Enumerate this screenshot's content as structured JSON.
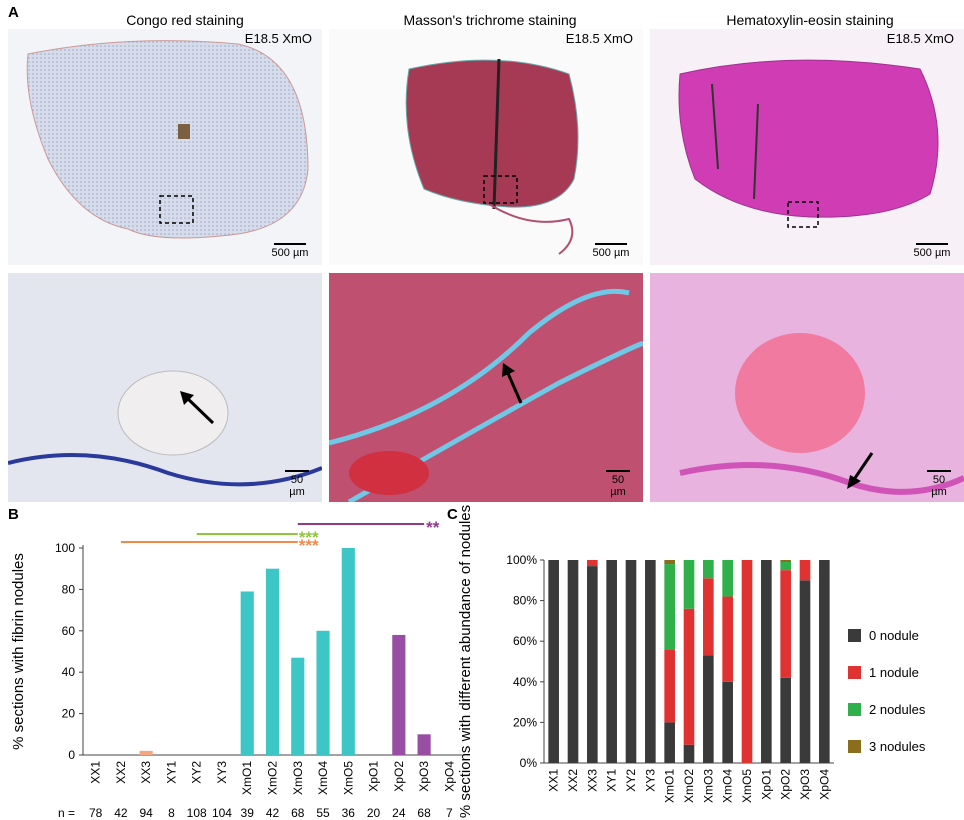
{
  "panel_A": {
    "letter": "A",
    "titles": [
      "Congo red staining",
      "Masson's trichrome staining",
      "Hematoxylin-eosin staining"
    ],
    "sample_tag": "E18.5 XmO",
    "scale_top": "500 µm",
    "scale_bottom": "50 µm"
  },
  "chart_data": [
    {
      "panel": "B",
      "type": "bar",
      "ylabel": "% sections with fibrin nodules",
      "ylim": [
        0,
        100
      ],
      "yticks": [
        0,
        20,
        40,
        60,
        80,
        100
      ],
      "categories": [
        "XX1",
        "XX2",
        "XX3",
        "XY1",
        "XY2",
        "XY3",
        "XmO1",
        "XmO2",
        "XmO3",
        "XmO4",
        "XmO5",
        "XpO1",
        "XpO2",
        "XpO3",
        "XpO4"
      ],
      "values": [
        0,
        0,
        2,
        0,
        0,
        0,
        79,
        90,
        47,
        60,
        100,
        0,
        58,
        10,
        0
      ],
      "n_prefix": "n =",
      "n_values": [
        "78",
        "42",
        "94",
        "8",
        "108",
        "104",
        "39",
        "42",
        "68",
        "55",
        "36",
        "20",
        "24",
        "68",
        "7"
      ],
      "groups": {
        "XX": {
          "range": [
            0,
            2
          ],
          "color": "#f4a582"
        },
        "XY": {
          "range": [
            3,
            5
          ],
          "color": "#f4a582"
        },
        "XmO": {
          "range": [
            6,
            10
          ],
          "color": "#3cc7c6"
        },
        "XpO": {
          "range": [
            11,
            14
          ],
          "color": "#984ea3"
        }
      },
      "significance": [
        {
          "from": "XX2",
          "to": "XmO3",
          "label": "***",
          "color": "#f4874b"
        },
        {
          "from": "XY2",
          "to": "XmO3",
          "label": "***",
          "color": "#8ec63f"
        },
        {
          "from": "XmO3",
          "to": "XpO3",
          "label": "**",
          "color": "#8e3a8e"
        }
      ]
    },
    {
      "panel": "C",
      "type": "bar",
      "stacked": true,
      "ylabel": "% sections with different abundance of nodules",
      "ylim": [
        0,
        100
      ],
      "ytick_labels": [
        "0%",
        "20%",
        "40%",
        "60%",
        "80%",
        "100%"
      ],
      "categories": [
        "XX1",
        "XX2",
        "XX3",
        "XY1",
        "XY2",
        "XY3",
        "XmO1",
        "XmO2",
        "XmO3",
        "XmO4",
        "XmO5",
        "XpO1",
        "XpO2",
        "XpO3",
        "XpO4"
      ],
      "series": [
        {
          "name": "0 nodule",
          "color": "#3a3a3a",
          "values": [
            100,
            100,
            97,
            100,
            100,
            100,
            20,
            9,
            53,
            40,
            0,
            100,
            42,
            90,
            100
          ]
        },
        {
          "name": "1 nodule",
          "color": "#e13232",
          "values": [
            0,
            0,
            3,
            0,
            0,
            0,
            36,
            67,
            38,
            42,
            100,
            0,
            53,
            10,
            0
          ]
        },
        {
          "name": "2 nodules",
          "color": "#2fb04a",
          "values": [
            0,
            0,
            0,
            0,
            0,
            0,
            42,
            24,
            9,
            18,
            0,
            0,
            4,
            0,
            0
          ]
        },
        {
          "name": "3 nodules",
          "color": "#8b6d1e",
          "values": [
            0,
            0,
            0,
            0,
            0,
            0,
            2,
            0,
            0,
            0,
            0,
            0,
            1,
            0,
            0
          ]
        }
      ],
      "legend_position": "right"
    }
  ]
}
